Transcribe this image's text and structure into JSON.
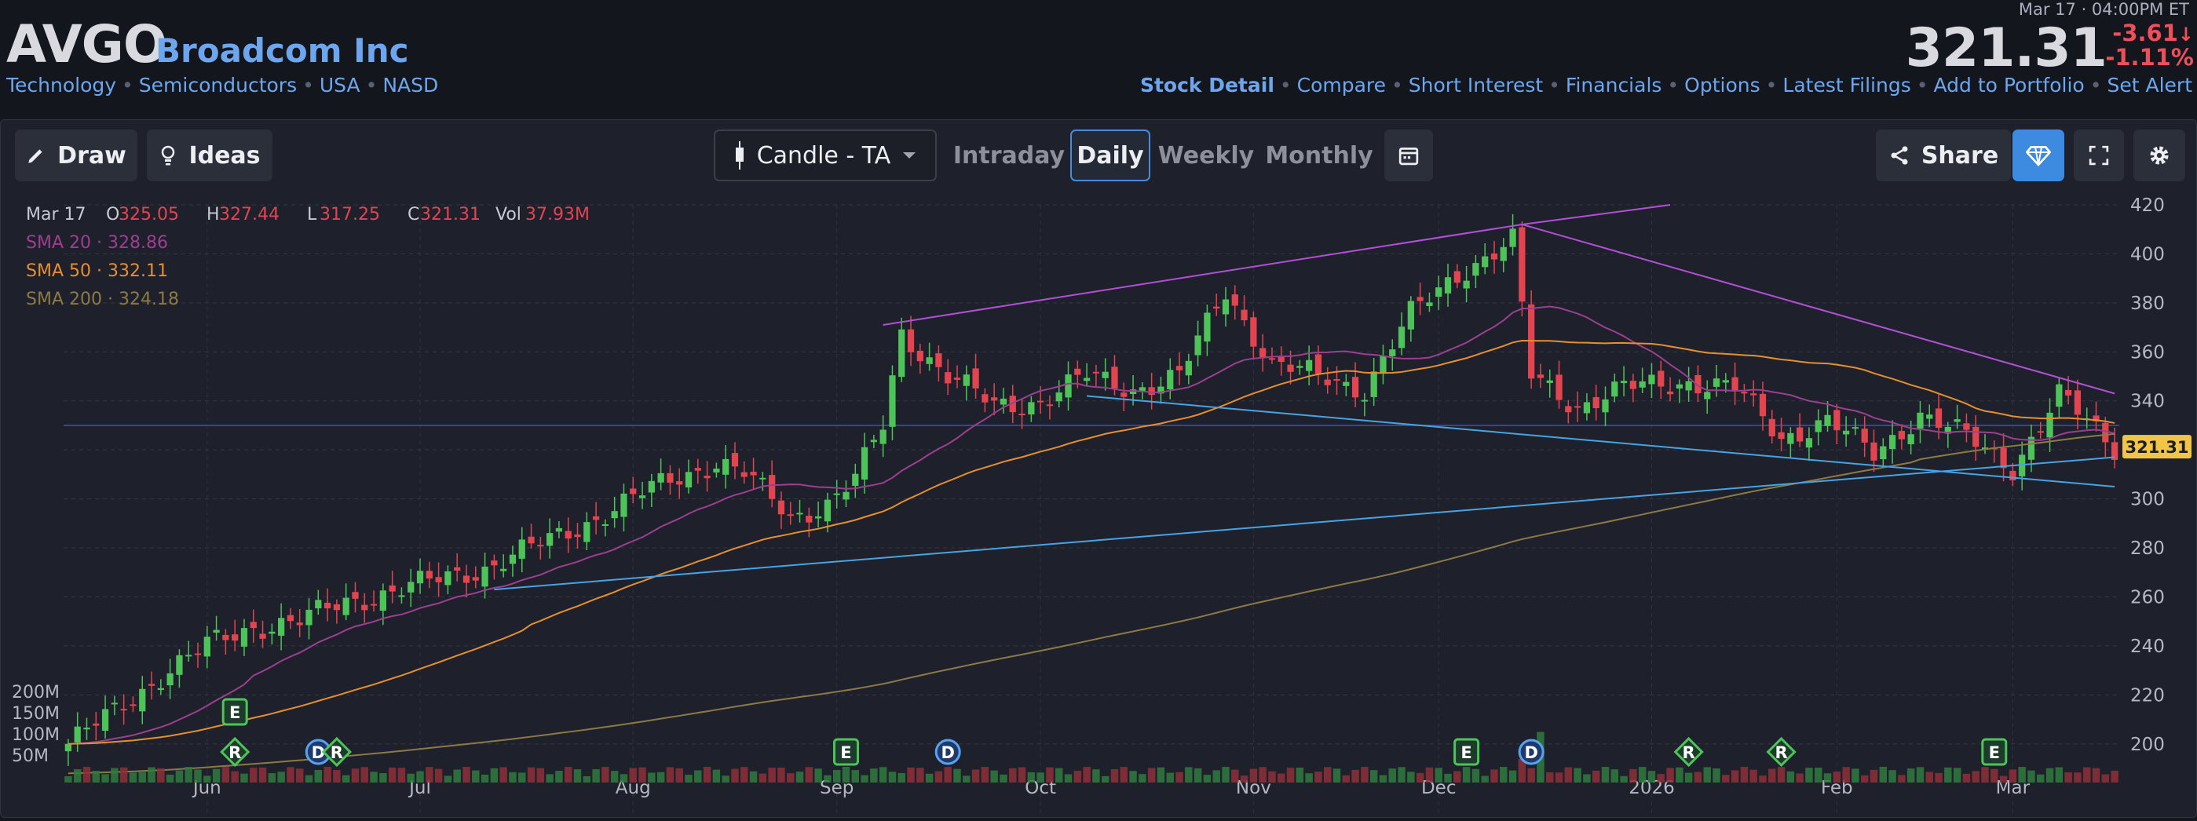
{
  "header": {
    "ticker": "AVGO",
    "company": "Broadcom Inc",
    "tags": [
      "Technology",
      "Semiconductors",
      "USA",
      "NASD"
    ],
    "quote_time": "Mar 17 · 04:00PM ET",
    "price": "321.31",
    "change": "-3.61",
    "change_pct": "-1.11%",
    "nav": [
      "Stock Detail",
      "Compare",
      "Short Interest",
      "Financials",
      "Options",
      "Latest Filings",
      "Add to Portfolio",
      "Set Alert"
    ]
  },
  "toolbar": {
    "draw": "Draw",
    "ideas": "Ideas",
    "chart_type": "Candle - TA",
    "timeframes": [
      "Intraday",
      "Daily",
      "Weekly",
      "Monthly"
    ],
    "selected": "Daily",
    "share": "Share"
  },
  "legend": {
    "date": "Mar 17",
    "o": "325.05",
    "h": "327.44",
    "l": "317.25",
    "c": "321.31",
    "vol": "37.93M",
    "sma20": "SMA 20 · 328.86",
    "sma50": "SMA 50 · 332.11",
    "sma200": "SMA 200 · 324.18"
  },
  "colors": {
    "up": "#4ec35a",
    "down": "#e2454f",
    "sma20": "#9c3f8f",
    "sma50": "#e58f30",
    "sma200": "#8c7a45",
    "trend_purple": "#b34fd6",
    "trend_blue": "#47a3e3",
    "hline": "#3a4492",
    "accent": "#4a8bd8"
  },
  "chart_data": {
    "type": "candlestick",
    "y_range": [
      190,
      420
    ],
    "y_ticks": [
      200,
      220,
      240,
      260,
      280,
      300,
      320,
      340,
      360,
      380,
      400,
      420
    ],
    "x_labels": [
      {
        "label": "Jun",
        "i": 15
      },
      {
        "label": "Jul",
        "i": 38
      },
      {
        "label": "Aug",
        "i": 61
      },
      {
        "label": "Sep",
        "i": 83
      },
      {
        "label": "Oct",
        "i": 105
      },
      {
        "label": "Nov",
        "i": 128
      },
      {
        "label": "Dec",
        "i": 148
      },
      {
        "label": "2026",
        "i": 171
      },
      {
        "label": "Feb",
        "i": 191
      },
      {
        "label": "Mar",
        "i": 210
      }
    ],
    "n_bars": 222,
    "waypoints": [
      [
        0,
        200
      ],
      [
        5,
        213
      ],
      [
        10,
        228
      ],
      [
        15,
        240
      ],
      [
        20,
        248
      ],
      [
        25,
        250
      ],
      [
        30,
        258
      ],
      [
        38,
        265
      ],
      [
        45,
        272
      ],
      [
        52,
        283
      ],
      [
        60,
        298
      ],
      [
        65,
        308
      ],
      [
        70,
        315
      ],
      [
        73,
        310
      ],
      [
        78,
        293
      ],
      [
        82,
        298
      ],
      [
        85,
        308
      ],
      [
        88,
        330
      ],
      [
        90,
        368
      ],
      [
        95,
        350
      ],
      [
        100,
        338
      ],
      [
        105,
        340
      ],
      [
        110,
        350
      ],
      [
        115,
        345
      ],
      [
        120,
        350
      ],
      [
        125,
        385
      ],
      [
        130,
        355
      ],
      [
        135,
        350
      ],
      [
        140,
        345
      ],
      [
        145,
        375
      ],
      [
        150,
        392
      ],
      [
        156,
        405
      ],
      [
        158,
        350
      ],
      [
        163,
        338
      ],
      [
        168,
        345
      ],
      [
        175,
        348
      ],
      [
        180,
        345
      ],
      [
        185,
        325
      ],
      [
        190,
        332
      ],
      [
        195,
        318
      ],
      [
        200,
        335
      ],
      [
        205,
        325
      ],
      [
        210,
        313
      ],
      [
        215,
        342
      ],
      [
        221,
        321
      ]
    ],
    "volume_axis": [
      "200M",
      "150M",
      "100M",
      "50M"
    ],
    "last_price": "321.31",
    "events": [
      {
        "label": "E",
        "i": 18,
        "row": 1
      },
      {
        "label": "R",
        "i": 18,
        "row": 2
      },
      {
        "label": "D",
        "i": 27,
        "row": 2
      },
      {
        "label": "R",
        "i": 29,
        "row": 2
      },
      {
        "label": "E",
        "i": 84,
        "row": 2
      },
      {
        "label": "D",
        "i": 95,
        "row": 2
      },
      {
        "label": "E",
        "i": 151,
        "row": 2
      },
      {
        "label": "D",
        "i": 158,
        "row": 2
      },
      {
        "label": "R",
        "i": 175,
        "row": 2
      },
      {
        "label": "R",
        "i": 185,
        "row": 2
      },
      {
        "label": "E",
        "i": 208,
        "row": 2
      }
    ]
  }
}
